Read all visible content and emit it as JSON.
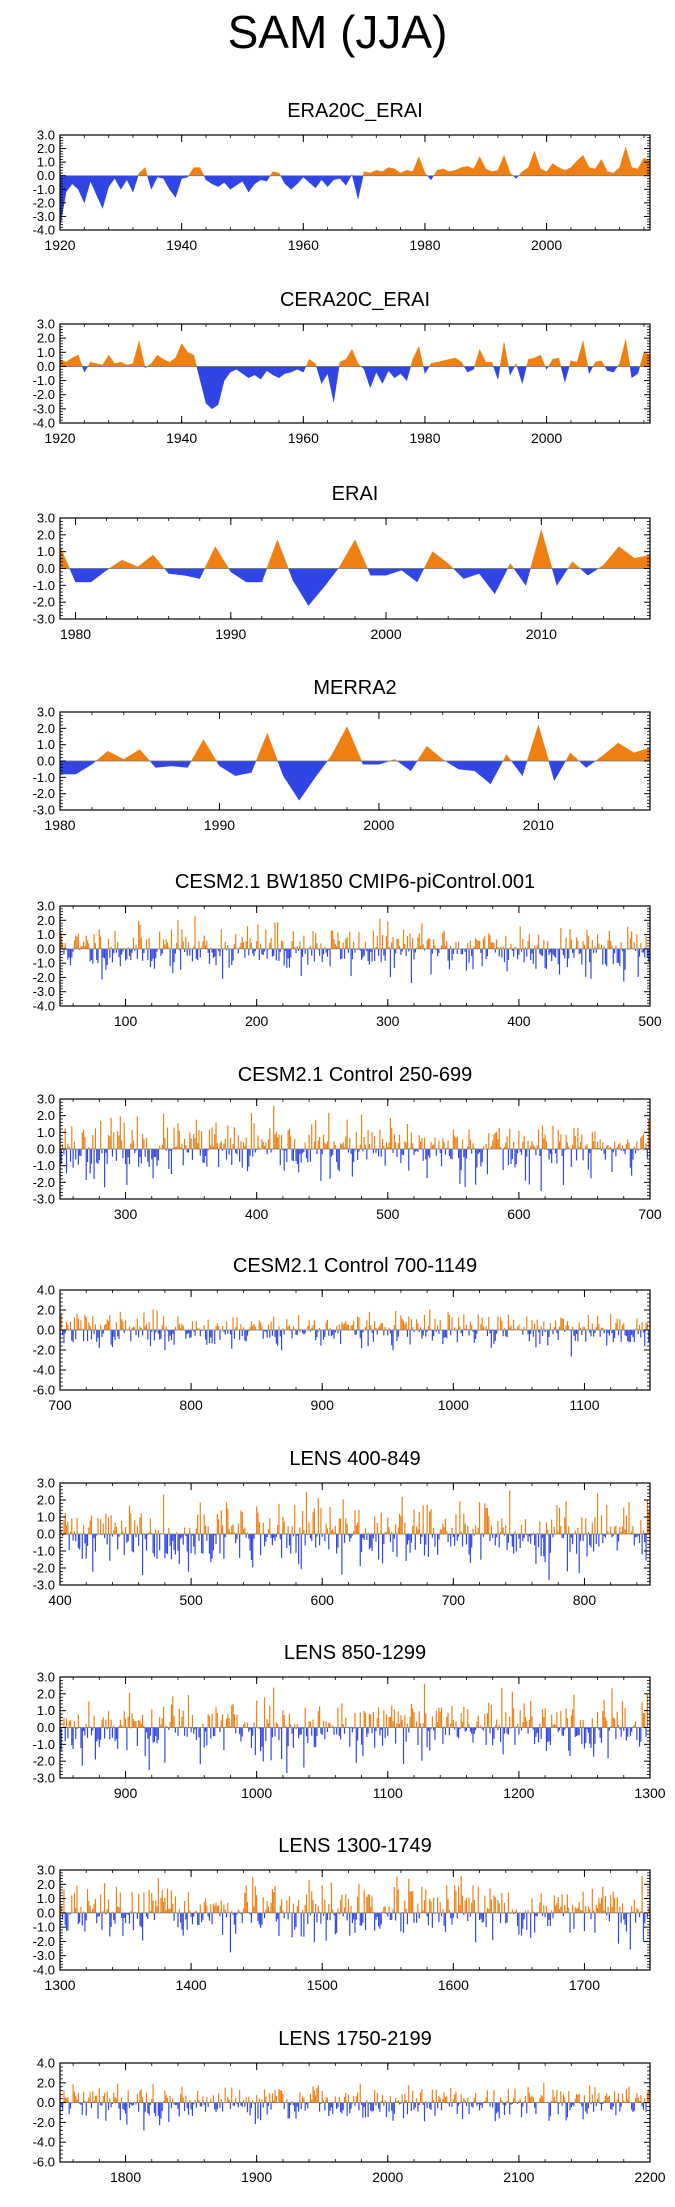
{
  "title": "SAM (JJA)",
  "colors": {
    "positive": "#f07f12",
    "negative": "#2f45e6",
    "frame": "#000000",
    "zero": "#777777"
  },
  "chart_data": [
    {
      "type": "area",
      "title": "ERA20C_ERAI",
      "series_kind": "annual",
      "x_start": 1900,
      "x_range": [
        1920,
        2017
      ],
      "ylim": [
        -4.0,
        3.0
      ],
      "xticks": [
        1920,
        1940,
        1960,
        1980,
        2000
      ],
      "yticks": [
        3.0,
        2.0,
        1.0,
        0.0,
        -1.0,
        -2.0,
        -3.0,
        -4.0
      ],
      "ytick_labels": [
        "3.0",
        "2.0",
        "1.0",
        "0.0",
        "-1.0",
        "-2.0",
        "-3.0",
        "-4.0"
      ],
      "x": [
        1920,
        1921,
        1922,
        1923,
        1924,
        1925,
        1926,
        1927,
        1928,
        1929,
        1930,
        1931,
        1932,
        1933,
        1934,
        1935,
        1936,
        1937,
        1938,
        1939,
        1940,
        1941,
        1942,
        1943,
        1944,
        1945,
        1946,
        1947,
        1948,
        1949,
        1950,
        1951,
        1952,
        1953,
        1954,
        1955,
        1956,
        1957,
        1958,
        1959,
        1960,
        1961,
        1962,
        1963,
        1964,
        1965,
        1966,
        1967,
        1968,
        1969,
        1970,
        1971,
        1972,
        1973,
        1974,
        1975,
        1976,
        1977,
        1978,
        1979,
        1980,
        1981,
        1982,
        1983,
        1984,
        1985,
        1986,
        1987,
        1988,
        1989,
        1990,
        1991,
        1992,
        1993,
        1994,
        1995,
        1996,
        1997,
        1998,
        1999,
        2000,
        2001,
        2002,
        2003,
        2004,
        2005,
        2006,
        2007,
        2008,
        2009,
        2010,
        2011,
        2012,
        2013,
        2014,
        2015,
        2016,
        2017
      ],
      "values": [
        -3.8,
        -1.2,
        -0.6,
        -1.0,
        -2.0,
        -0.4,
        -1.4,
        -2.4,
        -0.8,
        -0.2,
        -1.0,
        -0.3,
        -1.2,
        0.2,
        0.6,
        -1.0,
        -0.1,
        -0.2,
        -1.0,
        -1.6,
        -0.2,
        -0.1,
        0.6,
        0.6,
        -0.3,
        -0.6,
        -0.8,
        -0.5,
        -1.0,
        -0.7,
        -0.4,
        -1.2,
        -0.6,
        -0.3,
        -0.4,
        0.3,
        0.2,
        -0.6,
        -1.0,
        -0.6,
        -0.1,
        -0.5,
        -0.9,
        -0.3,
        -0.8,
        -0.3,
        -0.2,
        -0.7,
        0.1,
        -1.7,
        0.3,
        0.2,
        0.4,
        0.3,
        0.6,
        0.5,
        0.2,
        0.4,
        0.3,
        1.4,
        0.2,
        -0.3,
        0.4,
        0.5,
        0.3,
        0.4,
        0.6,
        0.7,
        0.5,
        1.4,
        0.5,
        0.3,
        0.4,
        1.5,
        0.2,
        -0.2,
        0.3,
        0.6,
        1.8,
        0.5,
        0.3,
        0.9,
        0.6,
        0.4,
        0.6,
        1.1,
        1.5,
        0.6,
        0.5,
        1.2,
        0.3,
        0.2,
        0.6,
        2.1,
        0.6,
        0.5,
        1.3,
        1.1
      ]
    },
    {
      "type": "area",
      "title": "CERA20C_ERAI",
      "series_kind": "annual",
      "x_start": 1900,
      "x_range": [
        1920,
        2017
      ],
      "ylim": [
        -4.0,
        3.0
      ],
      "xticks": [
        1920,
        1940,
        1960,
        1980,
        2000
      ],
      "yticks": [
        3.0,
        2.0,
        1.0,
        0.0,
        -1.0,
        -2.0,
        -3.0,
        -4.0
      ],
      "ytick_labels": [
        "3.0",
        "2.0",
        "1.0",
        "0.0",
        "-1.0",
        "-2.0",
        "-3.0",
        "-4.0"
      ],
      "x": [
        1920,
        1921,
        1922,
        1923,
        1924,
        1925,
        1926,
        1927,
        1928,
        1929,
        1930,
        1931,
        1932,
        1933,
        1934,
        1935,
        1936,
        1937,
        1938,
        1939,
        1940,
        1941,
        1942,
        1943,
        1944,
        1945,
        1946,
        1947,
        1948,
        1949,
        1950,
        1951,
        1952,
        1953,
        1954,
        1955,
        1956,
        1957,
        1958,
        1959,
        1960,
        1961,
        1962,
        1963,
        1964,
        1965,
        1966,
        1967,
        1968,
        1969,
        1970,
        1971,
        1972,
        1973,
        1974,
        1975,
        1976,
        1977,
        1978,
        1979,
        1980,
        1981,
        1982,
        1983,
        1984,
        1985,
        1986,
        1987,
        1988,
        1989,
        1990,
        1991,
        1992,
        1993,
        1994,
        1995,
        1996,
        1997,
        1998,
        1999,
        2000,
        2001,
        2002,
        2003,
        2004,
        2005,
        2006,
        2007,
        2008,
        2009,
        2010,
        2011,
        2012,
        2013,
        2014,
        2015,
        2016,
        2017
      ],
      "values": [
        0.5,
        0.3,
        0.6,
        0.8,
        -0.4,
        0.3,
        0.2,
        0.1,
        0.8,
        0.2,
        0.3,
        0.1,
        0.2,
        1.8,
        -0.1,
        0.2,
        0.8,
        0.5,
        0.3,
        0.6,
        1.6,
        1.0,
        0.8,
        -0.9,
        -2.6,
        -3.0,
        -2.7,
        -1.0,
        -0.4,
        -0.2,
        -0.5,
        -0.8,
        -0.6,
        -0.9,
        -0.3,
        -0.6,
        -0.8,
        -0.5,
        -0.4,
        -0.2,
        -0.4,
        0.5,
        0.2,
        -1.2,
        -0.5,
        -2.5,
        0.3,
        0.5,
        1.2,
        0.2,
        -0.2,
        -1.5,
        -0.4,
        -1.2,
        -0.3,
        -0.8,
        -0.5,
        -1.0,
        0.5,
        1.4,
        -0.5,
        0.2,
        0.3,
        0.4,
        0.5,
        0.6,
        0.3,
        -0.4,
        -0.2,
        1.2,
        0.3,
        0.3,
        -0.9,
        1.7,
        -0.6,
        0.2,
        -1.2,
        0.5,
        0.6,
        0.8,
        -0.2,
        0.5,
        0.6,
        -1.1,
        0.4,
        0.3,
        1.8,
        -0.5,
        0.3,
        0.4,
        -0.3,
        -0.4,
        0.2,
        1.9,
        -0.8,
        -0.5,
        1.0,
        0.8
      ]
    },
    {
      "type": "area",
      "title": "ERAI",
      "series_kind": "annual",
      "x_range": [
        1979,
        2017
      ],
      "ylim": [
        -3.0,
        3.0
      ],
      "xticks": [
        1980,
        1990,
        2000,
        2010
      ],
      "yticks": [
        3.0,
        2.0,
        1.0,
        0.0,
        -1.0,
        -2.0,
        -3.0
      ],
      "ytick_labels": [
        "3.0",
        "2.0",
        "1.0",
        "0.0",
        "-1.0",
        "-2.0",
        "-3.0"
      ],
      "x": [
        1979,
        1980,
        1981,
        1982,
        1983,
        1984,
        1985,
        1986,
        1987,
        1988,
        1989,
        1990,
        1991,
        1992,
        1993,
        1994,
        1995,
        1996,
        1997,
        1998,
        1999,
        2000,
        2001,
        2002,
        2003,
        2004,
        2005,
        2006,
        2007,
        2008,
        2009,
        2010,
        2011,
        2012,
        2013,
        2014,
        2015,
        2016,
        2017
      ],
      "values": [
        1.3,
        -0.8,
        -0.8,
        -0.1,
        0.5,
        0.1,
        0.8,
        -0.3,
        -0.4,
        -0.6,
        1.3,
        -0.2,
        -0.8,
        -0.8,
        1.7,
        -0.7,
        -2.2,
        -1.1,
        0.1,
        1.7,
        -0.4,
        -0.4,
        -0.1,
        -0.8,
        1.0,
        0.3,
        -0.6,
        -0.3,
        -1.5,
        0.3,
        -1.0,
        2.3,
        -1.0,
        0.4,
        -0.4,
        0.2,
        1.3,
        0.6,
        0.8
      ]
    },
    {
      "type": "area",
      "title": "MERRA2",
      "series_kind": "annual",
      "x_range": [
        1980,
        2017
      ],
      "ylim": [
        -3.0,
        3.0
      ],
      "xticks": [
        1980,
        1990,
        2000,
        2010
      ],
      "yticks": [
        3.0,
        2.0,
        1.0,
        0.0,
        -1.0,
        -2.0,
        -3.0
      ],
      "ytick_labels": [
        "3.0",
        "2.0",
        "1.0",
        "0.0",
        "-1.0",
        "-2.0",
        "-3.0"
      ],
      "x": [
        1980,
        1981,
        1982,
        1983,
        1984,
        1985,
        1986,
        1987,
        1988,
        1989,
        1990,
        1991,
        1992,
        1993,
        1994,
        1995,
        1996,
        1997,
        1998,
        1999,
        2000,
        2001,
        2002,
        2003,
        2004,
        2005,
        2006,
        2007,
        2008,
        2009,
        2010,
        2011,
        2012,
        2013,
        2014,
        2015,
        2016,
        2017
      ],
      "values": [
        -0.8,
        -0.8,
        -0.2,
        0.6,
        0.1,
        0.7,
        -0.4,
        -0.3,
        -0.4,
        1.3,
        -0.3,
        -0.9,
        -0.7,
        1.7,
        -0.9,
        -2.4,
        -1.0,
        0.3,
        2.1,
        -0.2,
        -0.2,
        0.1,
        -0.6,
        0.9,
        0.1,
        -0.5,
        -0.6,
        -1.4,
        0.4,
        -0.9,
        2.2,
        -1.2,
        0.5,
        -0.4,
        0.3,
        1.1,
        0.5,
        0.8
      ]
    },
    {
      "type": "bar",
      "title": "CESM2.1 BW1850 CMIP6-piControl.001",
      "series_kind": "simulated",
      "x_range": [
        50,
        500
      ],
      "ylim": [
        -4.0,
        3.0
      ],
      "seed": 11,
      "scale": 0.85,
      "xticks": [
        100,
        200,
        300,
        400,
        500
      ],
      "yticks": [
        3.0,
        2.0,
        1.0,
        0.0,
        -1.0,
        -2.0,
        -3.0,
        -4.0
      ],
      "ytick_labels": [
        "3.0",
        "2.0",
        "1.0",
        "0.0",
        "-1.0",
        "-2.0",
        "-3.0",
        "-4.0"
      ]
    },
    {
      "type": "bar",
      "title": "CESM2.1 Control 250-699",
      "series_kind": "simulated",
      "x_range": [
        250,
        700
      ],
      "ylim": [
        -3.0,
        3.0
      ],
      "seed": 23,
      "scale": 0.85,
      "xticks": [
        300,
        400,
        500,
        600,
        700
      ],
      "yticks": [
        3.0,
        2.0,
        1.0,
        0.0,
        -1.0,
        -2.0,
        -3.0
      ],
      "ytick_labels": [
        "3.0",
        "2.0",
        "1.0",
        "0.0",
        "-1.0",
        "-2.0",
        "-3.0"
      ]
    },
    {
      "type": "bar",
      "title": "CESM2.1 Control 700-1149",
      "series_kind": "simulated",
      "x_range": [
        700,
        1150
      ],
      "ylim": [
        -6.0,
        4.0
      ],
      "seed": 37,
      "scale": 0.85,
      "xticks": [
        700,
        800,
        900,
        1000,
        1100
      ],
      "yticks": [
        4.0,
        2.0,
        0.0,
        -2.0,
        -4.0,
        -6.0
      ],
      "ytick_labels": [
        "4.0",
        "2.0",
        "0.0",
        "-2.0",
        "-4.0",
        "-6.0"
      ]
    },
    {
      "type": "bar",
      "title": "LENS 400-849",
      "series_kind": "simulated",
      "x_range": [
        400,
        850
      ],
      "ylim": [
        -3.0,
        3.0
      ],
      "seed": 41,
      "scale": 0.95,
      "xticks": [
        400,
        500,
        600,
        700,
        800
      ],
      "yticks": [
        3.0,
        2.0,
        1.0,
        0.0,
        -1.0,
        -2.0,
        -3.0
      ],
      "ytick_labels": [
        "3.0",
        "2.0",
        "1.0",
        "0.0",
        "-1.0",
        "-2.0",
        "-3.0"
      ]
    },
    {
      "type": "bar",
      "title": "LENS 850-1299",
      "series_kind": "simulated",
      "x_range": [
        850,
        1300
      ],
      "ylim": [
        -3.0,
        3.0
      ],
      "seed": 53,
      "scale": 0.95,
      "xticks": [
        900,
        1000,
        1100,
        1200,
        1300
      ],
      "yticks": [
        3.0,
        2.0,
        1.0,
        0.0,
        -1.0,
        -2.0,
        -3.0
      ],
      "ytick_labels": [
        "3.0",
        "2.0",
        "1.0",
        "0.0",
        "-1.0",
        "-2.0",
        "-3.0"
      ]
    },
    {
      "type": "bar",
      "title": "LENS 1300-1749",
      "series_kind": "simulated",
      "x_range": [
        1300,
        1750
      ],
      "ylim": [
        -4.0,
        3.0
      ],
      "seed": 67,
      "scale": 0.95,
      "xticks": [
        1300,
        1400,
        1500,
        1600,
        1700
      ],
      "yticks": [
        3.0,
        2.0,
        1.0,
        0.0,
        -1.0,
        -2.0,
        -3.0,
        -4.0
      ],
      "ytick_labels": [
        "3.0",
        "2.0",
        "1.0",
        "0.0",
        "-1.0",
        "-2.0",
        "-3.0",
        "-4.0"
      ]
    },
    {
      "type": "bar",
      "title": "LENS 1750-2199",
      "series_kind": "simulated",
      "x_range": [
        1750,
        2200
      ],
      "ylim": [
        -6.0,
        4.0
      ],
      "seed": 79,
      "scale": 0.9,
      "xticks": [
        1800,
        1900,
        2000,
        2100,
        2200
      ],
      "yticks": [
        4.0,
        2.0,
        0.0,
        -2.0,
        -4.0,
        -6.0
      ],
      "ytick_labels": [
        "4.0",
        "2.0",
        "0.0",
        "-2.0",
        "-4.0",
        "-6.0"
      ]
    }
  ]
}
